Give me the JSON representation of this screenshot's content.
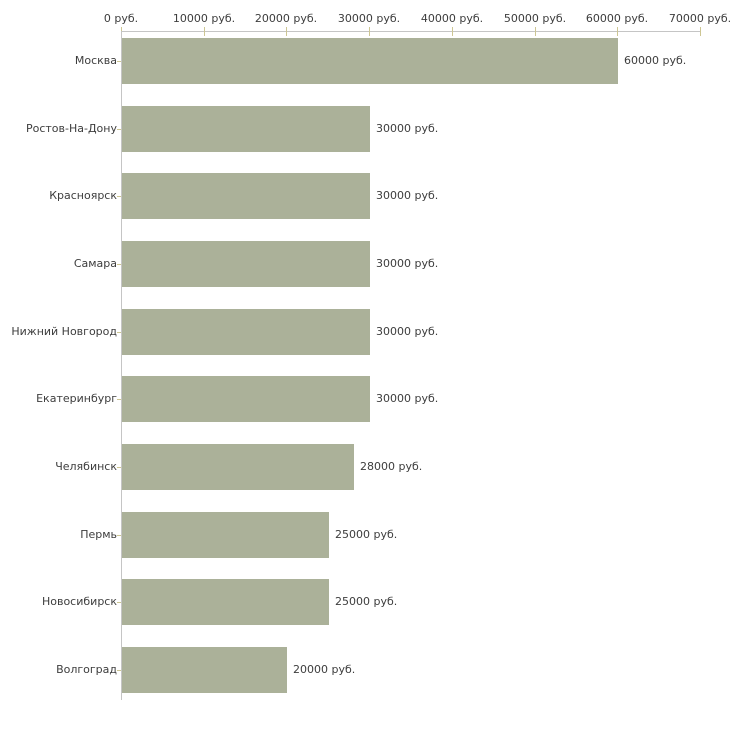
{
  "chart_data": {
    "type": "bar",
    "orientation": "horizontal",
    "title": "",
    "xlabel": "",
    "ylabel": "",
    "categories": [
      "Москва",
      "Ростов-На-Дону",
      "Красноярск",
      "Самара",
      "Нижний Новгород",
      "Екатеринбург",
      "Челябинск",
      "Пермь",
      "Новосибирск",
      "Волгоград"
    ],
    "values": [
      60000,
      30000,
      30000,
      30000,
      30000,
      30000,
      28000,
      25000,
      25000,
      20000
    ],
    "value_labels": [
      "60000 руб.",
      "30000 руб.",
      "30000 руб.",
      "30000 руб.",
      "30000 руб.",
      "30000 руб.",
      "28000 руб.",
      "25000 руб.",
      "25000 руб.",
      "20000 руб."
    ],
    "x_axis": {
      "position": "top",
      "min": 0,
      "max": 70000,
      "ticks": [
        0,
        10000,
        20000,
        30000,
        40000,
        50000,
        60000,
        70000
      ],
      "tick_labels": [
        "0 руб.",
        "10000 руб.",
        "20000 руб.",
        "30000 руб.",
        "40000 руб.",
        "50000 руб.",
        "60000 руб.",
        "70000 руб."
      ]
    },
    "grid": false,
    "legend": null,
    "colors": {
      "bar": "#abb199",
      "axis_line": "#c5c5c5",
      "tick": "#cdc693",
      "text": "#3d3d3d",
      "background": "#ffffff"
    }
  }
}
